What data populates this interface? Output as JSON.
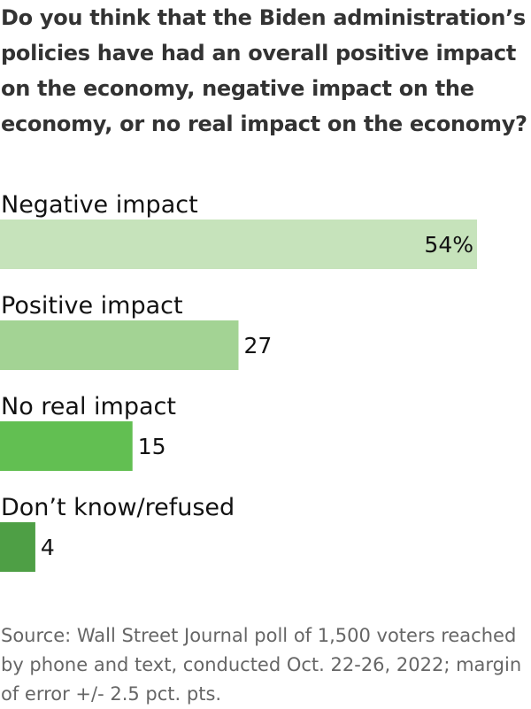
{
  "chart_data": {
    "type": "bar",
    "orientation": "horizontal",
    "title": "Do you think that the Biden administration’s policies have had an overall positive impact on the economy, negative impact on the economy, or no real impact on the economy?",
    "categories": [
      "Negative impact",
      "Positive impact",
      "No real impact",
      "Don’t know/refused"
    ],
    "values": [
      54,
      27,
      15,
      4
    ],
    "value_labels": [
      "54%",
      "27",
      "15",
      "4"
    ],
    "colors": [
      "#c6e3bb",
      "#a3d394",
      "#62bf52",
      "#4e9f45"
    ],
    "xlim": [
      0,
      54
    ],
    "grid": false,
    "legend": "none"
  },
  "source": "Source: Wall Street Journal poll of 1,500 voters reached by phone and text, conducted Oct. 22-26, 2022; margin of error +/- 2.5 pct. pts."
}
